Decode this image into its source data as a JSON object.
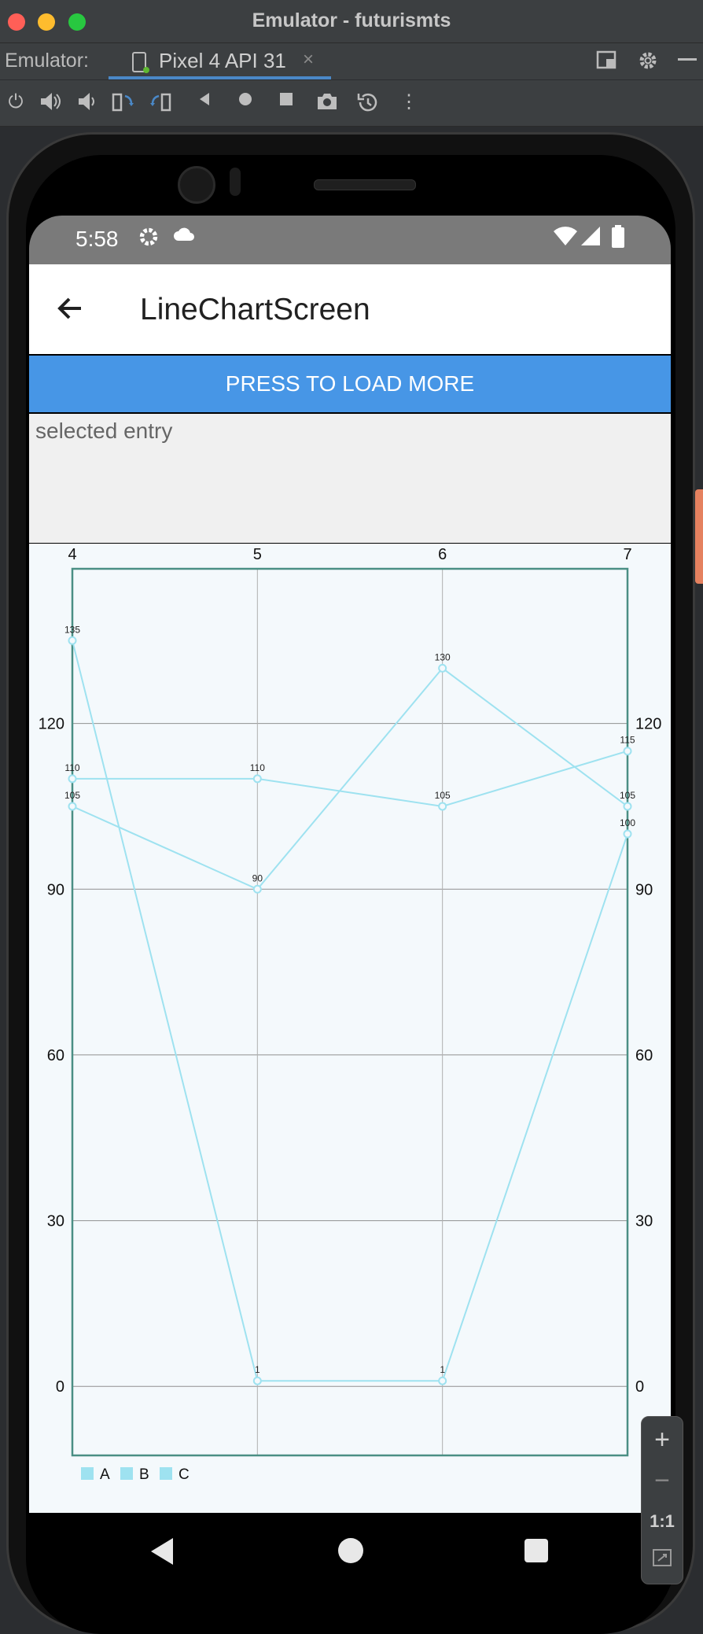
{
  "window": {
    "title": "Emulator - futurismts"
  },
  "tabbar": {
    "label": "Emulator:",
    "tab_label": "Pixel 4 API 31",
    "tab_close": "×"
  },
  "toolbar": {
    "icons": [
      "power-icon",
      "volume-up-icon",
      "volume-down-icon",
      "rotate-left-icon",
      "rotate-right-icon",
      "back-icon",
      "home-icon",
      "overview-icon",
      "camera-icon",
      "snapshot-icon",
      "more-icon"
    ]
  },
  "statusbar": {
    "time": "5:58"
  },
  "app": {
    "title": "LineChartScreen",
    "load_button": "PRESS TO LOAD MORE",
    "selected_entry": "selected entry"
  },
  "zoom": {
    "plus": "+",
    "minus": "−",
    "one_to_one": "1:1"
  },
  "colors": {
    "accent": "#4796e6",
    "line": "#9ee2f0",
    "border": "#4a8f84"
  },
  "chart_data": {
    "type": "line",
    "x": [
      4,
      5,
      6,
      7
    ],
    "y_ticks": [
      0,
      30,
      60,
      90,
      120
    ],
    "ylim": [
      -12.5,
      148
    ],
    "xlim": [
      4,
      7
    ],
    "grid": true,
    "legend_position": "bottom-left",
    "series": [
      {
        "name": "A",
        "values": [
          135,
          1,
          1,
          100
        ]
      },
      {
        "name": "B",
        "values": [
          110,
          110,
          105,
          115
        ]
      },
      {
        "name": "C",
        "values": [
          105,
          90,
          130,
          105
        ]
      }
    ],
    "data_labels": true
  }
}
